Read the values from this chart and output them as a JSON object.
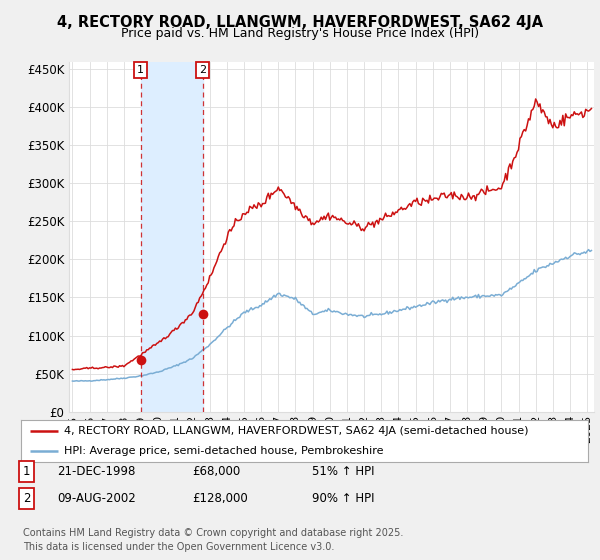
{
  "title": "4, RECTORY ROAD, LLANGWM, HAVERFORDWEST, SA62 4JA",
  "subtitle": "Price paid vs. HM Land Registry's House Price Index (HPI)",
  "legend_property": "4, RECTORY ROAD, LLANGWM, HAVERFORDWEST, SA62 4JA (semi-detached house)",
  "legend_hpi": "HPI: Average price, semi-detached house, Pembrokeshire",
  "footnote": "Contains HM Land Registry data © Crown copyright and database right 2025.\nThis data is licensed under the Open Government Licence v3.0.",
  "purchase1_date": "21-DEC-1998",
  "purchase1_price": "£68,000",
  "purchase1_hpi": "51% ↑ HPI",
  "purchase2_date": "09-AUG-2002",
  "purchase2_price": "£128,000",
  "purchase2_hpi": "90% ↑ HPI",
  "purchase1_x": 1998.97,
  "purchase1_y": 68000,
  "purchase2_x": 2002.6,
  "purchase2_y": 128000,
  "vline1_x": 1998.97,
  "vline2_x": 2002.6,
  "ylim": [
    0,
    460000
  ],
  "xlim_start": 1994.8,
  "xlim_end": 2025.4,
  "property_color": "#cc1111",
  "hpi_color": "#7aadd4",
  "background_color": "#f0f0f0",
  "plot_bg_color": "#ffffff",
  "shade_color": "#ddeeff",
  "grid_color": "#dddddd",
  "yticks": [
    0,
    50000,
    100000,
    150000,
    200000,
    250000,
    300000,
    350000,
    400000,
    450000
  ],
  "ytick_labels": [
    "£0",
    "£50K",
    "£100K",
    "£150K",
    "£200K",
    "£250K",
    "£300K",
    "£350K",
    "£400K",
    "£450K"
  ],
  "xticks": [
    1995,
    1996,
    1997,
    1998,
    1999,
    2000,
    2001,
    2002,
    2003,
    2004,
    2005,
    2006,
    2007,
    2008,
    2009,
    2010,
    2011,
    2012,
    2013,
    2014,
    2015,
    2016,
    2017,
    2018,
    2019,
    2020,
    2021,
    2022,
    2023,
    2024,
    2025
  ],
  "hpi_year_vals": {
    "1995": 40000,
    "1996": 40500,
    "1997": 42000,
    "1998": 44000,
    "1999": 47000,
    "2000": 52000,
    "2001": 60000,
    "2002": 70000,
    "2003": 88000,
    "2004": 110000,
    "2005": 130000,
    "2006": 140000,
    "2007": 155000,
    "2008": 148000,
    "2009": 128000,
    "2010": 133000,
    "2011": 128000,
    "2012": 125000,
    "2013": 128000,
    "2014": 133000,
    "2015": 138000,
    "2016": 143000,
    "2017": 148000,
    "2018": 150000,
    "2019": 152000,
    "2020": 153000,
    "2021": 168000,
    "2022": 185000,
    "2023": 195000,
    "2024": 205000,
    "2025": 210000
  },
  "prop_year_vals": {
    "1995": 55000,
    "1996": 57000,
    "1997": 58000,
    "1998": 60000,
    "1999": 75000,
    "2000": 90000,
    "2001": 108000,
    "2002": 130000,
    "2003": 175000,
    "2004": 230000,
    "2005": 262000,
    "2006": 272000,
    "2007": 295000,
    "2008": 270000,
    "2009": 248000,
    "2010": 258000,
    "2011": 248000,
    "2012": 242000,
    "2013": 252000,
    "2014": 264000,
    "2015": 275000,
    "2016": 278000,
    "2017": 285000,
    "2018": 282000,
    "2019": 288000,
    "2020": 295000,
    "2021": 348000,
    "2022": 408000,
    "2023": 375000,
    "2024": 388000,
    "2025": 395000
  }
}
